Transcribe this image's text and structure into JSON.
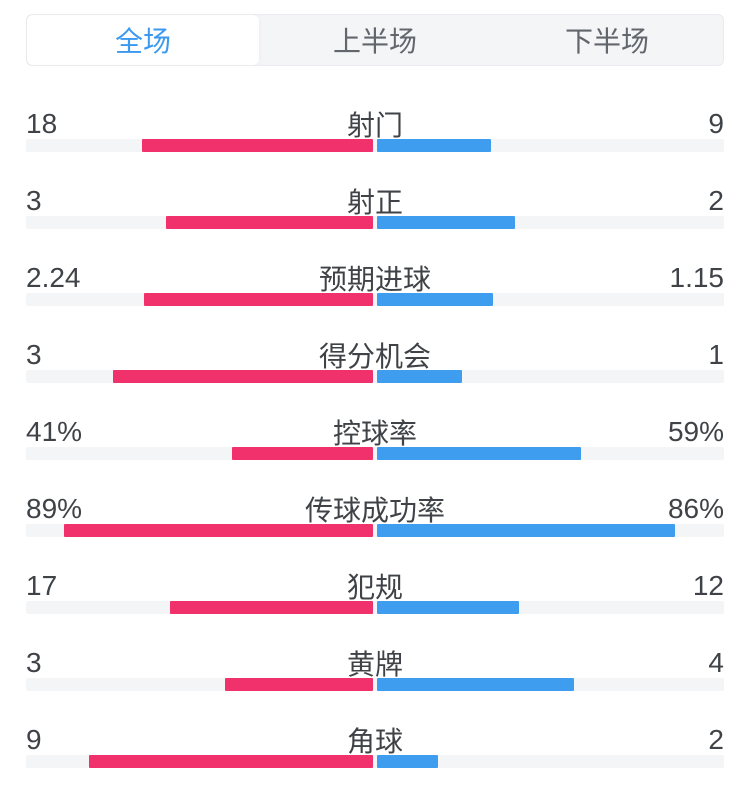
{
  "colors": {
    "home": "#f1316b",
    "away": "#3f9df0",
    "track": "#f3f5f7",
    "text": "#3f4347",
    "tab_bg": "#f4f5f7",
    "tab_text": "#62666d",
    "tab_active_text": "#3b99f0"
  },
  "tabs": [
    {
      "label": "全场",
      "active": true
    },
    {
      "label": "上半场",
      "active": false
    },
    {
      "label": "下半场",
      "active": false
    }
  ],
  "stats": [
    {
      "label": "射门",
      "home": "18",
      "away": "9"
    },
    {
      "label": "射正",
      "home": "3",
      "away": "2"
    },
    {
      "label": "预期进球",
      "home": "2.24",
      "away": "1.15"
    },
    {
      "label": "得分机会",
      "home": "3",
      "away": "1"
    },
    {
      "label": "控球率",
      "home": "41%",
      "away": "59%"
    },
    {
      "label": "传球成功率",
      "home": "89%",
      "away": "86%"
    },
    {
      "label": "犯规",
      "home": "17",
      "away": "12"
    },
    {
      "label": "黄牌",
      "home": "3",
      "away": "4"
    },
    {
      "label": "角球",
      "home": "9",
      "away": "2"
    }
  ]
}
